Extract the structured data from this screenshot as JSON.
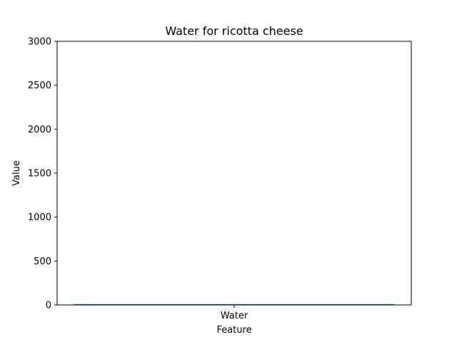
{
  "chart_data": {
    "type": "bar",
    "title": "Water for ricotta cheese",
    "xlabel": "Feature",
    "ylabel": "Value",
    "categories": [
      "Water"
    ],
    "values": [
      10
    ],
    "ylim": [
      0,
      3000
    ],
    "yticks": [
      0,
      500,
      1000,
      1500,
      2000,
      2500,
      3000
    ],
    "grid": false,
    "legend": "none",
    "bar_color": "#1f77b4"
  }
}
